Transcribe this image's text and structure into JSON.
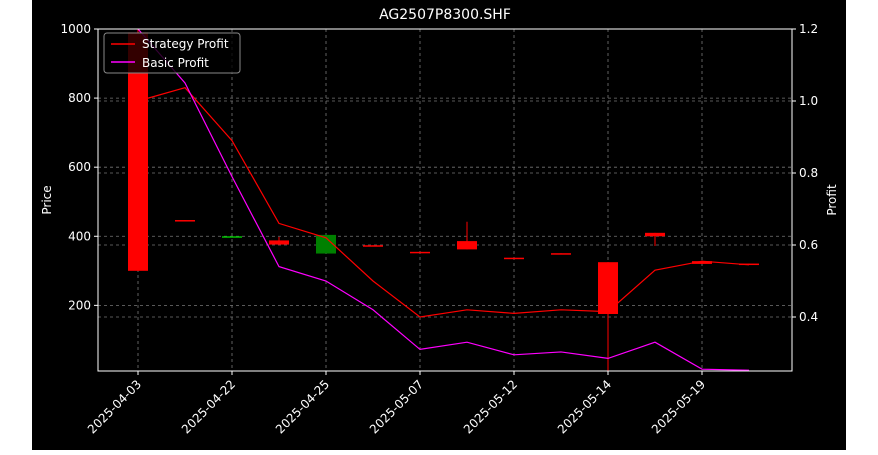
{
  "chart_data": {
    "type": "candlestick+line",
    "title": "AG2507P8300.SHF",
    "xlabel": "",
    "ylabel_left": "Price",
    "ylabel_right": "Profit",
    "ylim_left": [
      10,
      1000
    ],
    "ylim_right": [
      0.25,
      1.2
    ],
    "yticks_left": [
      200,
      400,
      600,
      800,
      1000
    ],
    "yticks_right": [
      0.4,
      0.6,
      0.8,
      1.0,
      1.2
    ],
    "x_tick_labels": [
      "2025-04-03",
      "2025-04-22",
      "2025-04-25",
      "2025-05-07",
      "2025-05-12",
      "2025-05-14",
      "2025-05-19"
    ],
    "grid": true,
    "legend_position": "top-left",
    "candles": [
      {
        "open": 300,
        "close": 990,
        "high": 1000,
        "low": 300,
        "color": "#ff0000"
      },
      {
        "open": 445,
        "close": 447,
        "high": 447,
        "low": 445,
        "color": "#ff0000"
      },
      {
        "open": 398,
        "close": 400,
        "high": 400,
        "low": 398,
        "color": "#00c000"
      },
      {
        "open": 376,
        "close": 388,
        "high": 398,
        "low": 374,
        "color": "#ff0000"
      },
      {
        "open": 404,
        "close": 350,
        "high": 404,
        "low": 350,
        "color": "#008000"
      },
      {
        "open": 372,
        "close": 374,
        "high": 374,
        "low": 372,
        "color": "#ff0000"
      },
      {
        "open": 353,
        "close": 355,
        "high": 355,
        "low": 353,
        "color": "#ff0000"
      },
      {
        "open": 362,
        "close": 386,
        "high": 442,
        "low": 362,
        "color": "#ff0000"
      },
      {
        "open": 336,
        "close": 338,
        "high": 338,
        "low": 336,
        "color": "#ff0000"
      },
      {
        "open": 349,
        "close": 351,
        "high": 351,
        "low": 349,
        "color": "#ff0000"
      },
      {
        "open": 175,
        "close": 325,
        "high": 325,
        "low": 10,
        "color": "#ff0000"
      },
      {
        "open": 400,
        "close": 410,
        "high": 410,
        "low": 372,
        "color": "#ff0000"
      },
      {
        "open": 320,
        "close": 328,
        "high": 330,
        "low": 320,
        "color": "#ff0000"
      },
      {
        "open": 318,
        "close": 321,
        "high": 321,
        "low": 318,
        "color": "#ff0000"
      }
    ],
    "series": [
      {
        "name": "Strategy Profit",
        "color": "#ff0000",
        "values": [
          1.0,
          1.037,
          0.89,
          0.66,
          0.62,
          0.5,
          0.4,
          0.42,
          0.41,
          0.42,
          0.415,
          0.53,
          0.555,
          0.545
        ]
      },
      {
        "name": "Basic Profit",
        "color": "#ff00ff",
        "values": [
          1.2,
          1.05,
          0.79,
          0.54,
          0.5,
          0.42,
          0.31,
          0.33,
          0.295,
          0.303,
          0.285,
          0.33,
          0.255,
          0.252
        ]
      }
    ]
  }
}
